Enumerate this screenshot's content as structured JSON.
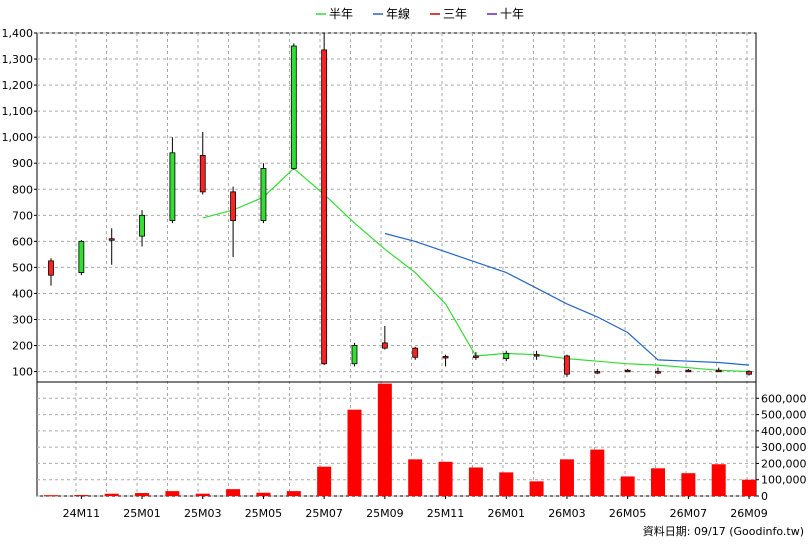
{
  "legend": [
    {
      "label": "半年",
      "color": "#33dd33"
    },
    {
      "label": "年線",
      "color": "#2266cc"
    },
    {
      "label": "三年",
      "color": "#cc0000"
    },
    {
      "label": "十年",
      "color": "#6622cc"
    }
  ],
  "footer": {
    "source": "資料日期: 09/17  (Goodinfo.tw)"
  },
  "chart_data": [
    {
      "type": "candlestick",
      "title": "",
      "ylim": [
        60,
        1400
      ],
      "yticks": [
        100,
        200,
        300,
        400,
        500,
        600,
        700,
        800,
        900,
        1000,
        1100,
        1200,
        1300,
        1400
      ],
      "ytick_labels": [
        "100",
        "200",
        "300",
        "400",
        "500",
        "600",
        "700",
        "800",
        "900",
        "1,000",
        "1,100",
        "1,200",
        "1,300",
        "1,400"
      ],
      "grid": true,
      "candles": [
        {
          "x": 1,
          "open": 470,
          "close": 525,
          "high": 535,
          "low": 430
        },
        {
          "x": 2,
          "open": 600,
          "close": 480,
          "high": 605,
          "low": 470
        },
        {
          "x": 3,
          "open": 610,
          "close": 610,
          "high": 650,
          "low": 510
        },
        {
          "x": 4,
          "open": 700,
          "close": 620,
          "high": 720,
          "low": 580
        },
        {
          "x": 5,
          "open": 940,
          "close": 680,
          "high": 1000,
          "low": 670
        },
        {
          "x": 6,
          "open": 790,
          "close": 930,
          "high": 1020,
          "low": 780
        },
        {
          "x": 7,
          "open": 680,
          "close": 790,
          "high": 810,
          "low": 540
        },
        {
          "x": 8,
          "open": 880,
          "close": 680,
          "high": 900,
          "low": 670
        },
        {
          "x": 9,
          "open": 1350,
          "close": 880,
          "high": 1360,
          "low": 875
        },
        {
          "x": 10,
          "open": 130,
          "close": 1335,
          "high": 1400,
          "low": 125
        },
        {
          "x": 11,
          "open": 200,
          "close": 130,
          "high": 210,
          "low": 120
        },
        {
          "x": 12,
          "open": 190,
          "close": 210,
          "high": 275,
          "low": 185
        },
        {
          "x": 13,
          "open": 155,
          "close": 190,
          "high": 195,
          "low": 145
        },
        {
          "x": 14,
          "open": 158,
          "close": 158,
          "high": 165,
          "low": 120
        },
        {
          "x": 15,
          "open": 160,
          "close": 160,
          "high": 175,
          "low": 145
        },
        {
          "x": 16,
          "open": 170,
          "close": 150,
          "high": 180,
          "low": 140
        },
        {
          "x": 17,
          "open": 165,
          "close": 165,
          "high": 180,
          "low": 145
        },
        {
          "x": 18,
          "open": 90,
          "close": 160,
          "high": 165,
          "low": 80
        },
        {
          "x": 19,
          "open": 100,
          "close": 100,
          "high": 110,
          "low": 90
        },
        {
          "x": 20,
          "open": 105,
          "close": 105,
          "high": 110,
          "low": 100
        },
        {
          "x": 21,
          "open": 100,
          "close": 100,
          "high": 115,
          "low": 90
        },
        {
          "x": 22,
          "open": 105,
          "close": 105,
          "high": 110,
          "low": 98
        },
        {
          "x": 23,
          "open": 105,
          "close": 105,
          "high": 115,
          "low": 100
        },
        {
          "x": 24,
          "open": 90,
          "close": 100,
          "high": 105,
          "low": 85
        }
      ],
      "series": [
        {
          "name": "半年",
          "color": "#33dd33",
          "points": [
            [
              6,
              690
            ],
            [
              7,
              720
            ],
            [
              8,
              770
            ],
            [
              9,
              880
            ],
            [
              10,
              780
            ],
            [
              11,
              670
            ],
            [
              12,
              570
            ],
            [
              13,
              480
            ],
            [
              14,
              360
            ],
            [
              15,
              160
            ],
            [
              16,
              170
            ],
            [
              17,
              165
            ],
            [
              18,
              150
            ],
            [
              19,
              140
            ],
            [
              20,
              130
            ],
            [
              21,
              125
            ],
            [
              22,
              115
            ],
            [
              23,
              105
            ],
            [
              24,
              100
            ]
          ]
        },
        {
          "name": "年線",
          "color": "#2266cc",
          "points": [
            [
              12,
              630
            ],
            [
              13,
              600
            ],
            [
              14,
              560
            ],
            [
              15,
              520
            ],
            [
              16,
              480
            ],
            [
              17,
              420
            ],
            [
              18,
              360
            ],
            [
              19,
              310
            ],
            [
              20,
              250
            ],
            [
              21,
              145
            ],
            [
              22,
              140
            ],
            [
              23,
              135
            ],
            [
              24,
              125
            ]
          ]
        }
      ]
    },
    {
      "type": "bar",
      "title": "",
      "ylim": [
        0,
        700000
      ],
      "yticks": [
        0,
        100000,
        200000,
        300000,
        400000,
        500000,
        600000
      ],
      "ytick_labels": [
        "0",
        "100,000",
        "200,000",
        "300,000",
        "400,000",
        "500,000",
        "600,000"
      ],
      "x": [
        1,
        2,
        3,
        4,
        5,
        6,
        7,
        8,
        9,
        10,
        11,
        12,
        13,
        14,
        15,
        16,
        17,
        18,
        19,
        20,
        21,
        22,
        23,
        24
      ],
      "values": [
        5000,
        6000,
        14000,
        18000,
        30000,
        14000,
        42000,
        20000,
        30000,
        180000,
        530000,
        690000,
        225000,
        210000,
        175000,
        145000,
        90000,
        225000,
        285000,
        120000,
        170000,
        140000,
        195000,
        100000
      ],
      "color": "#ff0000"
    }
  ],
  "x_axis": {
    "tick_labels": [
      {
        "x": 2,
        "label": "24M11"
      },
      {
        "x": 4,
        "label": "25M01"
      },
      {
        "x": 6,
        "label": "25M03"
      },
      {
        "x": 8,
        "label": "25M05"
      },
      {
        "x": 10,
        "label": "25M07"
      },
      {
        "x": 12,
        "label": "25M09"
      },
      {
        "x": 14,
        "label": "25M11"
      },
      {
        "x": 16,
        "label": "26M01"
      },
      {
        "x": 18,
        "label": "26M03"
      },
      {
        "x": 20,
        "label": "26M05"
      },
      {
        "x": 22,
        "label": "26M07"
      },
      {
        "x": 24,
        "label": "26M09"
      }
    ]
  }
}
